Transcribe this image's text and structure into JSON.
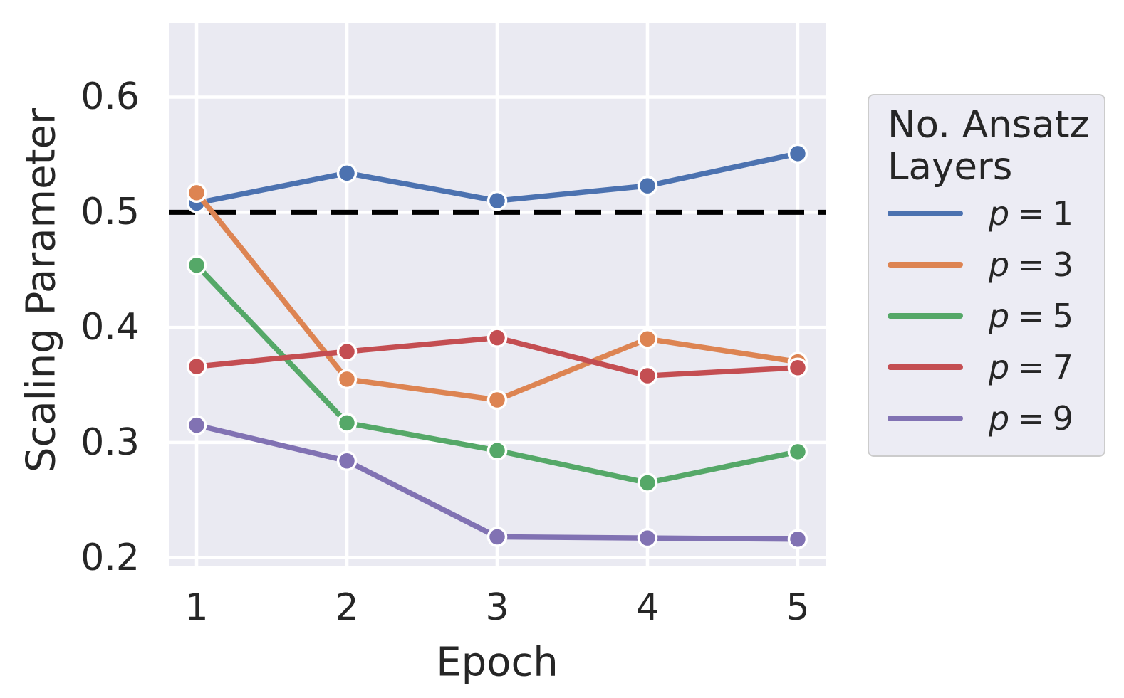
{
  "figure": {
    "xlabel": "Epoch",
    "ylabel": "Scaling Parameter"
  },
  "legend": {
    "title_lines": [
      "No. Ansatz",
      "Layers"
    ],
    "entries": [
      {
        "var": "p",
        "eq": "=",
        "value": "1",
        "color": "#4C72B0"
      },
      {
        "var": "p",
        "eq": "=",
        "value": "3",
        "color": "#DD8452"
      },
      {
        "var": "p",
        "eq": "=",
        "value": "5",
        "color": "#55A868"
      },
      {
        "var": "p",
        "eq": "=",
        "value": "7",
        "color": "#C44E52"
      },
      {
        "var": "p",
        "eq": "=",
        "value": "9",
        "color": "#8172B3"
      }
    ]
  },
  "chart_data": {
    "type": "line",
    "title": "",
    "xlabel": "Epoch",
    "ylabel": "Scaling Parameter",
    "x": [
      1,
      2,
      3,
      4,
      5
    ],
    "xtick_labels": [
      "1",
      "2",
      "3",
      "4",
      "5"
    ],
    "ytick_labels": [
      "0.6",
      "0.5",
      "0.4",
      "0.3",
      "0.2"
    ],
    "yticks": [
      0.6,
      0.5,
      0.4,
      0.3,
      0.2
    ],
    "xlim": [
      0.815,
      5.185
    ],
    "ylim": [
      0.193,
      0.664
    ],
    "grid": true,
    "plot_bg": "#EAEAF2",
    "grid_color": "#FFFFFF",
    "text_color": "#262626",
    "reference_line": {
      "y": 0.5,
      "style": "dashed",
      "color": "#000000"
    },
    "legend_title": "No. Ansatz Layers",
    "legend_position": "right",
    "series": [
      {
        "name": "p = 1",
        "color": "#4C72B0",
        "values": [
          0.508,
          0.534,
          0.51,
          0.523,
          0.551
        ]
      },
      {
        "name": "p = 3",
        "color": "#DD8452",
        "values": [
          0.517,
          0.355,
          0.337,
          0.39,
          0.37
        ]
      },
      {
        "name": "p = 5",
        "color": "#55A868",
        "values": [
          0.454,
          0.317,
          0.293,
          0.265,
          0.292
        ]
      },
      {
        "name": "p = 7",
        "color": "#C44E52",
        "values": [
          0.366,
          0.379,
          0.391,
          0.358,
          0.365
        ]
      },
      {
        "name": "p = 9",
        "color": "#8172B3",
        "values": [
          0.315,
          0.284,
          0.218,
          0.217,
          0.216
        ]
      }
    ]
  }
}
